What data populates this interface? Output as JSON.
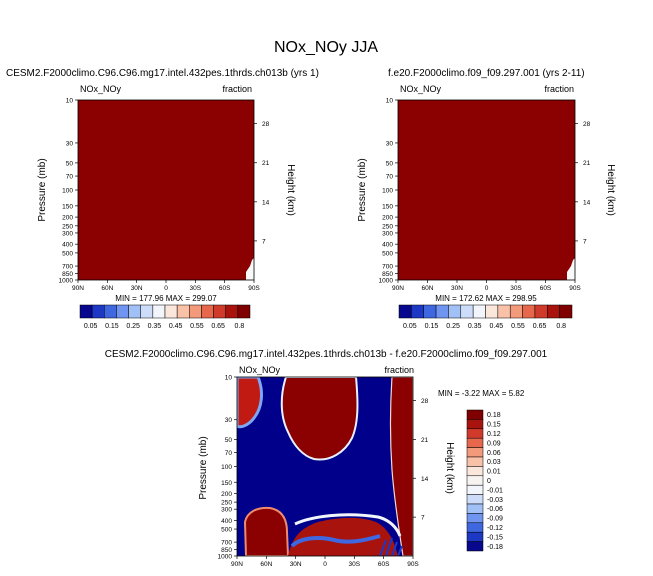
{
  "page_title": "NOx_NOy JJA",
  "chart_data": [
    {
      "type": "heatmap",
      "title": "CESM2.F2000climo.C96.C96.mg17.intel.432pes.1thrds.ch013b (yrs 1)",
      "left_label": "NOx_NOy",
      "right_label": "fraction",
      "ylabel": "Pressure (mb)",
      "ylabel_right": "Height (km)",
      "x_ticks": [
        "90N",
        "60N",
        "30N",
        "0",
        "30S",
        "60S",
        "90S"
      ],
      "x_values": [
        90,
        60,
        30,
        0,
        -30,
        -60,
        -90
      ],
      "y_ticks": [
        "10",
        "30",
        "50",
        "70",
        "100",
        "150",
        "200",
        "250",
        "300",
        "400",
        "500",
        "700",
        "850",
        "1000"
      ],
      "y_values": [
        10,
        30,
        50,
        70,
        100,
        150,
        200,
        250,
        300,
        400,
        500,
        700,
        850,
        1000
      ],
      "ylim": [
        1000,
        10
      ],
      "height_ticks": [
        "28",
        "21",
        "14",
        "7"
      ],
      "height_values": [
        28,
        21,
        14,
        7
      ],
      "stats": "MIN = 177.96   MAX = 299.07",
      "fill_color": "#8b0000"
    },
    {
      "type": "heatmap",
      "title": "f.e20.F2000climo.f09_f09.297.001 (yrs 2-11)",
      "left_label": "NOx_NOy",
      "right_label": "fraction",
      "ylabel": "Pressure (mb)",
      "ylabel_right": "Height (km)",
      "x_ticks": [
        "90N",
        "60N",
        "30N",
        "0",
        "30S",
        "60S",
        "90S"
      ],
      "x_values": [
        90,
        60,
        30,
        0,
        -30,
        -60,
        -90
      ],
      "y_ticks": [
        "10",
        "30",
        "50",
        "70",
        "100",
        "150",
        "200",
        "250",
        "300",
        "400",
        "500",
        "700",
        "850",
        "1000"
      ],
      "y_values": [
        10,
        30,
        50,
        70,
        100,
        150,
        200,
        250,
        300,
        400,
        500,
        700,
        850,
        1000
      ],
      "ylim": [
        1000,
        10
      ],
      "height_ticks": [
        "28",
        "21",
        "14",
        "7"
      ],
      "height_values": [
        28,
        21,
        14,
        7
      ],
      "stats": "MIN = 172.62   MAX = 298.95",
      "fill_color": "#8b0000"
    },
    {
      "type": "heatmap",
      "title": "CESM2.F2000climo.C96.C96.mg17.intel.432pes.1thrds.ch013b - f.e20.F2000climo.f09_f09.297.001",
      "left_label": "NOx_NOy",
      "right_label": "fraction",
      "ylabel": "Pressure (mb)",
      "ylabel_right": "Height (km)",
      "x_ticks": [
        "90N",
        "60N",
        "30N",
        "0",
        "30S",
        "60S",
        "90S"
      ],
      "x_values": [
        90,
        60,
        30,
        0,
        -30,
        -60,
        -90
      ],
      "y_ticks": [
        "10",
        "30",
        "50",
        "70",
        "100",
        "150",
        "200",
        "250",
        "300",
        "400",
        "500",
        "700",
        "850",
        "1000"
      ],
      "y_values": [
        10,
        30,
        50,
        70,
        100,
        150,
        200,
        250,
        300,
        400,
        500,
        700,
        850,
        1000
      ],
      "ylim": [
        1000,
        10
      ],
      "height_ticks": [
        "28",
        "21",
        "14",
        "7"
      ],
      "height_values": [
        28,
        21,
        14,
        7
      ],
      "stats": "MIN = -3.22   MAX =  5.82",
      "dominant_colors": [
        "#00008b",
        "#8b0000"
      ]
    }
  ],
  "colorbar_horizontal": {
    "labels": [
      "0.05",
      "0.15",
      "0.25",
      "0.35",
      "0.45",
      "0.55",
      "0.65",
      "0.8"
    ],
    "colors": [
      "#08088e",
      "#1c38c4",
      "#3f67e0",
      "#6f95f0",
      "#a0c0f6",
      "#cdddf9",
      "#f2f5fb",
      "#fbe6dc",
      "#f9c1a8",
      "#f39a7a",
      "#e6674b",
      "#cf3a2a",
      "#a8140d",
      "#7f0000"
    ]
  },
  "colorbar_vertical": {
    "labels": [
      "0.18",
      "0.15",
      "0.12",
      "0.09",
      "0.06",
      "0.03",
      "0.01",
      "0",
      "-0.01",
      "-0.03",
      "-0.06",
      "-0.09",
      "-0.12",
      "-0.15",
      "-0.18"
    ],
    "colors": [
      "#7f0000",
      "#a8140d",
      "#cf3a2a",
      "#e6674b",
      "#f39a7a",
      "#f9c1a8",
      "#fbe6dc",
      "#f7f3f1",
      "#f2f5fb",
      "#cdddf9",
      "#a0c0f6",
      "#6f95f0",
      "#3f67e0",
      "#1c38c4",
      "#08088e"
    ]
  }
}
